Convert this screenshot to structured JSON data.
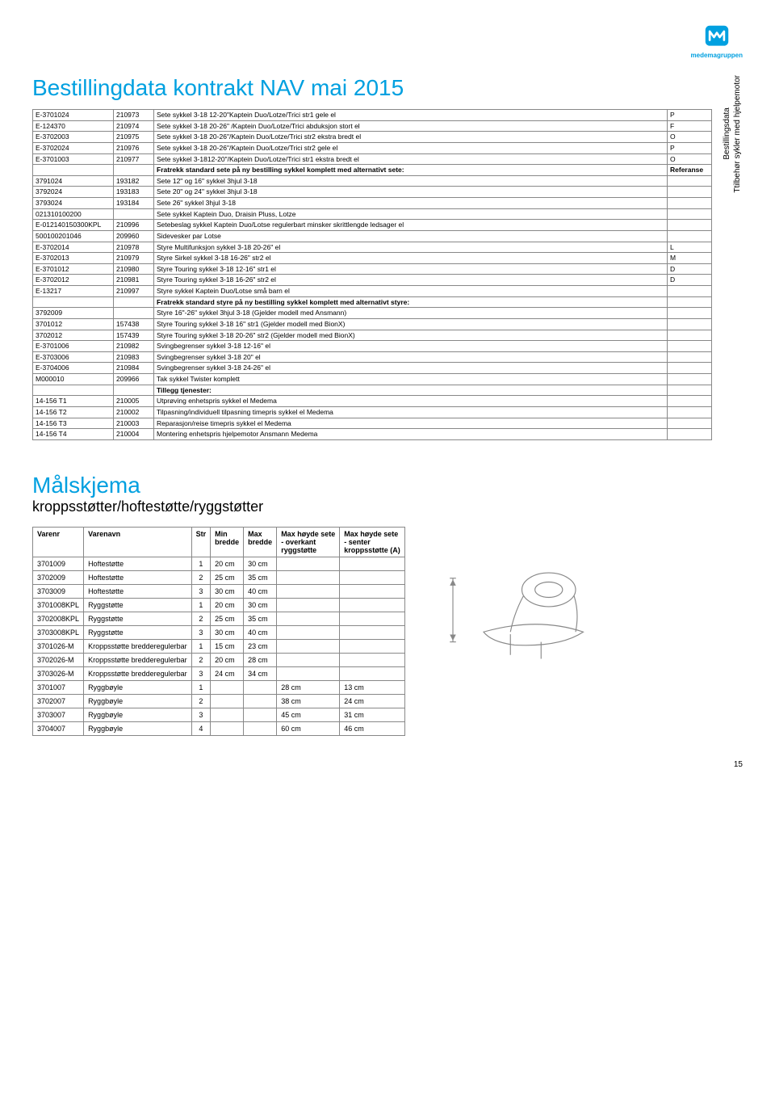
{
  "logo": {
    "text": "medemagruppen"
  },
  "title": "Bestillingdata kontrakt NAV mai 2015",
  "sideLabel": "Bestillingsdata\nTtilbehør sykler med hjelpemotor",
  "table1": {
    "rows": [
      {
        "c": [
          "E-3701024",
          "210973",
          "Sete sykkel 3-18 12-20\"Kaptein Duo/Lotze/Trici str1 gele el",
          "P"
        ]
      },
      {
        "c": [
          "E-124370",
          "210974",
          "Sete sykkel 3-18 20-26\" /Kaptein Duo/Lotze/Trici abduksjon stort el",
          "F"
        ]
      },
      {
        "c": [
          "E-3702003",
          "210975",
          "Sete sykkel 3-18 20-26\"/Kaptein Duo/Lotze/Trici str2 ekstra bredt el",
          "O"
        ]
      },
      {
        "c": [
          "E-3702024",
          "210976",
          "Sete sykkel 3-18 20-26\"/Kaptein Duo/Lotze/Trici str2 gele el",
          "P"
        ]
      },
      {
        "c": [
          "E-3701003",
          "210977",
          "Sete sykkel 3-1812-20\"/Kaptein Duo/Lotze/Trici str1 ekstra bredt el",
          "O"
        ]
      },
      {
        "c": [
          "",
          "",
          "Fratrekk standard sete på ny bestilling sykkel komplett med alternativt sete:",
          "Referanse"
        ],
        "bold": true
      },
      {
        "c": [
          "3791024",
          "193182",
          "Sete 12\" og 16\" sykkel 3hjul 3-18",
          ""
        ]
      },
      {
        "c": [
          "3792024",
          "193183",
          "Sete 20\" og 24\" sykkel 3hjul 3-18",
          ""
        ]
      },
      {
        "c": [
          "3793024",
          "193184",
          "Sete 26\" sykkel 3hjul 3-18",
          ""
        ]
      },
      {
        "c": [
          "021310100200",
          "",
          "Sete sykkel Kaptein Duo, Draisin Pluss, Lotze",
          ""
        ]
      },
      {
        "c": [
          "E-012140150300KPL",
          "210996",
          "Setebeslag sykkel Kaptein Duo/Lotse regulerbart minsker skrittlengde ledsager el",
          ""
        ]
      },
      {
        "c": [
          "500100201046",
          "209960",
          "Sidevesker par Lotse",
          ""
        ]
      },
      {
        "c": [
          "E-3702014",
          "210978",
          "Styre Multifunksjon sykkel 3-18 20-26\" el",
          "L"
        ]
      },
      {
        "c": [
          "E-3702013",
          "210979",
          "Styre Sirkel sykkel 3-18 16-26\" str2 el",
          "M"
        ]
      },
      {
        "c": [
          "E-3701012",
          "210980",
          "Styre Touring sykkel 3-18 12-16\" str1 el",
          "D"
        ]
      },
      {
        "c": [
          "E-3702012",
          "210981",
          "Styre Touring sykkel 3-18 16-26\" str2 el",
          "D"
        ]
      },
      {
        "c": [
          "E-13217",
          "210997",
          "Styre sykkel Kaptein Duo/Lotse små barn el",
          ""
        ]
      },
      {
        "c": [
          "",
          "",
          "Fratrekk standard styre på ny bestilling sykkel komplett med alternativt styre:",
          ""
        ],
        "bold": true
      },
      {
        "c": [
          "3792009",
          "",
          "Styre 16\"-26\" sykkel 3hjul 3-18 (Gjelder modell med Ansmann)",
          ""
        ]
      },
      {
        "c": [
          "3701012",
          "157438",
          "Styre Touring sykkel 3-18 16\" str1 (Gjelder modell med BionX)",
          ""
        ]
      },
      {
        "c": [
          "3702012",
          "157439",
          "Styre Touring sykkel 3-18 20-26\" str2 (Gjelder modell med BionX)",
          ""
        ]
      },
      {
        "c": [
          "E-3701006",
          "210982",
          "Svingbegrenser sykkel 3-18 12-16\" el",
          ""
        ]
      },
      {
        "c": [
          "E-3703006",
          "210983",
          "Svingbegrenser sykkel 3-18 20\" el",
          ""
        ]
      },
      {
        "c": [
          "E-3704006",
          "210984",
          "Svingbegrenser sykkel 3-18 24-26\" el",
          ""
        ]
      },
      {
        "c": [
          "M000010",
          "209966",
          "Tak sykkel Twister komplett",
          ""
        ]
      },
      {
        "c": [
          "",
          "",
          "Tillegg tjenester:",
          ""
        ],
        "bold": true
      },
      {
        "c": [
          "14-156 T1",
          "210005",
          "Utprøving enhetspris sykkel el Medema",
          ""
        ]
      },
      {
        "c": [
          "14-156 T2",
          "210002",
          "Tilpasning/individuell tilpasning timepris sykkel el Medema",
          ""
        ]
      },
      {
        "c": [
          "14-156 T3",
          "210003",
          "Reparasjon/reise timepris sykkel el Medema",
          ""
        ]
      },
      {
        "c": [
          "14-156 T4",
          "210004",
          "Montering enhetspris hjelpemotor Ansmann Medema",
          ""
        ]
      }
    ]
  },
  "section2": {
    "title": "Målskjema",
    "subtitle": "kroppsstøtter/hoftestøtte/ryggstøtter",
    "headers": [
      "Varenr",
      "Varenavn",
      "Str",
      "Min bredde",
      "Max bredde",
      "Max høyde sete - overkant ryggstøtte",
      "Max høyde sete - senter kroppsstøtte (A)"
    ],
    "rows": [
      [
        "3701009",
        "Hoftestøtte",
        "1",
        "20 cm",
        "30 cm",
        "",
        ""
      ],
      [
        "3702009",
        "Hoftestøtte",
        "2",
        "25 cm",
        "35 cm",
        "",
        ""
      ],
      [
        "3703009",
        "Hoftestøtte",
        "3",
        "30 cm",
        "40 cm",
        "",
        ""
      ],
      [
        "3701008KPL",
        "Ryggstøtte",
        "1",
        "20 cm",
        "30 cm",
        "",
        ""
      ],
      [
        "3702008KPL",
        "Ryggstøtte",
        "2",
        "25 cm",
        "35 cm",
        "",
        ""
      ],
      [
        "3703008KPL",
        "Ryggstøtte",
        "3",
        "30 cm",
        "40 cm",
        "",
        ""
      ],
      [
        "3701026-M",
        "Kroppsstøtte bredderegulerbar",
        "1",
        "15 cm",
        "23 cm",
        "",
        ""
      ],
      [
        "3702026-M",
        "Kroppsstøtte bredderegulerbar",
        "2",
        "20 cm",
        "28 cm",
        "",
        ""
      ],
      [
        "3703026-M",
        "Kroppsstøtte bredderegulerbar",
        "3",
        "24 cm",
        "34 cm",
        "",
        ""
      ],
      [
        "3701007",
        "Ryggbøyle",
        "1",
        "",
        "",
        "28 cm",
        "13 cm"
      ],
      [
        "3702007",
        "Ryggbøyle",
        "2",
        "",
        "",
        "38 cm",
        "24 cm"
      ],
      [
        "3703007",
        "Ryggbøyle",
        "3",
        "",
        "",
        "45 cm",
        "31 cm"
      ],
      [
        "3704007",
        "Ryggbøyle",
        "4",
        "",
        "",
        "60 cm",
        "46 cm"
      ]
    ]
  },
  "pageNumber": "15"
}
